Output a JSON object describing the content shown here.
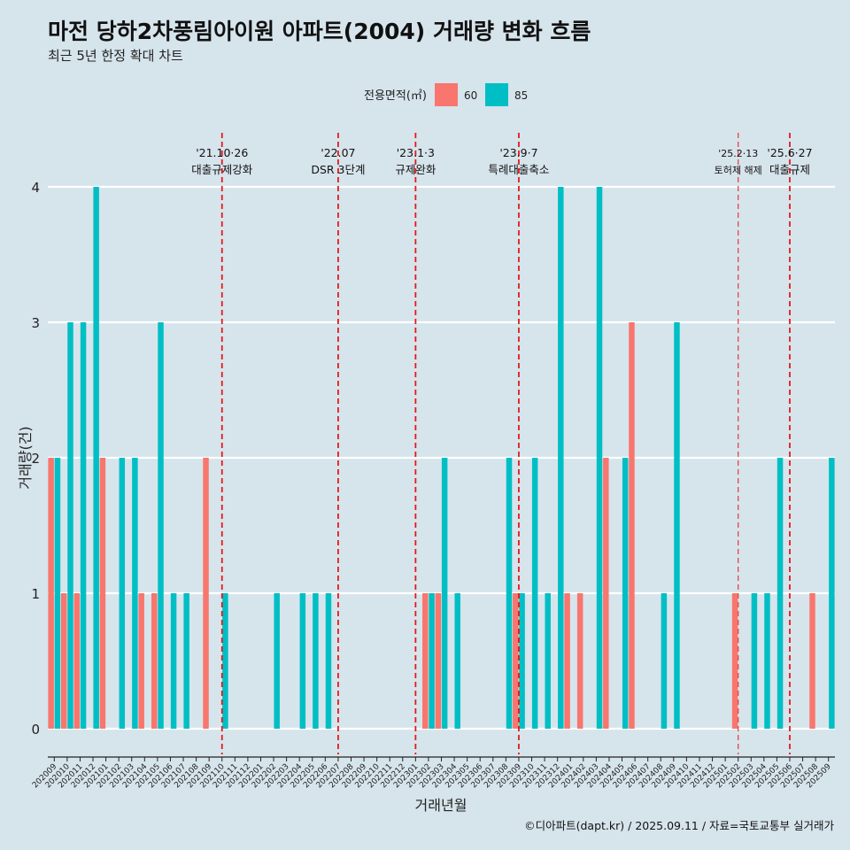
{
  "chart_data": {
    "type": "bar",
    "title": "마전 당하2차풍림아이원 아파트(2004) 거래량 변화 흐름",
    "subtitle": "최근 5년 한정 확대 차트",
    "xlabel": "거래년월",
    "ylabel": "거래량(건)",
    "ylim": [
      0,
      4
    ],
    "yticks": [
      "0",
      "1",
      "2",
      "3",
      "4"
    ],
    "grid": true,
    "legend": {
      "title": "전용면적(㎡)",
      "position": "top",
      "entries": [
        "60",
        "85"
      ]
    },
    "colors": {
      "60": "#f8766d",
      "85": "#00bfc4"
    },
    "categories": [
      "202009",
      "202010",
      "202011",
      "202012",
      "202101",
      "202102",
      "202103",
      "202104",
      "202105",
      "202106",
      "202107",
      "202108",
      "202109",
      "202110",
      "202111",
      "202112",
      "202201",
      "202202",
      "202203",
      "202204",
      "202205",
      "202206",
      "202207",
      "202208",
      "202209",
      "202210",
      "202211",
      "202212",
      "202301",
      "202302",
      "202303",
      "202304",
      "202305",
      "202306",
      "202307",
      "202308",
      "202309",
      "202310",
      "202311",
      "202312",
      "202401",
      "202402",
      "202403",
      "202404",
      "202405",
      "202406",
      "202407",
      "202408",
      "202409",
      "202410",
      "202411",
      "202412",
      "202501",
      "202502",
      "202503",
      "202504",
      "202505",
      "202506",
      "202507",
      "202508",
      "202509"
    ],
    "series": [
      {
        "name": "60",
        "values": [
          2,
          1,
          1,
          0,
          2,
          0,
          0,
          1,
          1,
          0,
          0,
          0,
          2,
          0,
          0,
          0,
          0,
          0,
          0,
          0,
          0,
          0,
          0,
          0,
          0,
          0,
          0,
          0,
          0,
          1,
          1,
          0,
          0,
          0,
          0,
          0,
          1,
          0,
          0,
          0,
          1,
          1,
          0,
          2,
          0,
          3,
          0,
          0,
          0,
          0,
          0,
          0,
          0,
          1,
          0,
          0,
          0,
          0,
          0,
          1,
          0
        ]
      },
      {
        "name": "85",
        "values": [
          2,
          3,
          3,
          4,
          0,
          2,
          2,
          0,
          3,
          1,
          1,
          0,
          0,
          1,
          0,
          0,
          0,
          1,
          0,
          1,
          1,
          1,
          0,
          0,
          0,
          0,
          0,
          0,
          0,
          1,
          2,
          1,
          0,
          0,
          0,
          2,
          1,
          2,
          1,
          4,
          0,
          0,
          4,
          0,
          2,
          0,
          0,
          1,
          3,
          0,
          0,
          0,
          0,
          0,
          1,
          1,
          2,
          0,
          0,
          0,
          2
        ]
      }
    ],
    "events": [
      {
        "at": "202110",
        "date": "'21.10·26",
        "label": "대출규제강화"
      },
      {
        "at": "202207",
        "date": "'22.07",
        "label": "DSR 3단계"
      },
      {
        "at": "202301",
        "date": "'23.1·3",
        "label": "규제완화"
      },
      {
        "at": "202309",
        "date": "'23.9·7",
        "label": "특례대출축소"
      },
      {
        "at": "202502",
        "date": "'25.2·13",
        "label": "토허제 해제"
      },
      {
        "at": "202506",
        "date": "'25.6·27",
        "label": "대출규제"
      }
    ],
    "caption": "©디아파트(dapt.kr) / 2025.09.11 / 자료=국토교통부 실거래가"
  }
}
